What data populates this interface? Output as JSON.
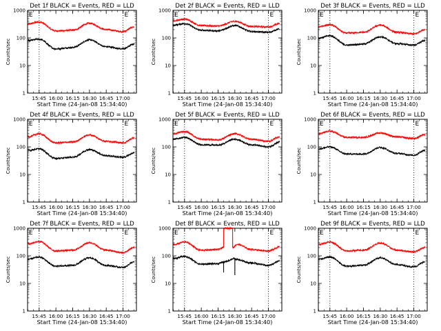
{
  "chart_data": [
    {
      "type": "line",
      "title": "Det 1f BLACK = Events, RED = LLD",
      "xlabel": "Start Time (24-Jan-08 15:34:40)",
      "ylabel": "Counts/sec",
      "y_scale": "log",
      "ylim": [
        1,
        1000
      ],
      "xlim": [
        "15:34:40",
        "17:12:00"
      ],
      "xticks": [
        "15:45",
        "16:00",
        "16:15",
        "16:30",
        "16:45",
        "17:00"
      ],
      "yticks": [
        "1",
        "10",
        "100",
        "1000"
      ],
      "markers": [
        {
          "label": "E",
          "time": "15:45"
        },
        {
          "label": "E",
          "time": "17:00"
        }
      ],
      "series": [
        {
          "color": "#ff0000",
          "x": [
            "15:35",
            "15:45",
            "16:00",
            "16:15",
            "16:30",
            "16:45",
            "17:00",
            "17:10"
          ],
          "values": [
            320,
            380,
            180,
            190,
            340,
            200,
            170,
            250
          ]
        },
        {
          "color": "#000000",
          "x": [
            "15:35",
            "15:45",
            "16:00",
            "16:15",
            "16:30",
            "16:45",
            "17:00",
            "17:10"
          ],
          "values": [
            80,
            90,
            40,
            45,
            85,
            48,
            40,
            60
          ]
        }
      ]
    },
    {
      "type": "line",
      "title": "Det 2f BLACK = Events, RED = LLD",
      "xlabel": "Start Time (24-Jan-08 15:34:40)",
      "ylabel": "Counts/sec",
      "y_scale": "log",
      "ylim": [
        1,
        1000
      ],
      "xlim": [
        "15:34:40",
        "17:12:00"
      ],
      "xticks": [
        "15:45",
        "16:00",
        "16:15",
        "16:30",
        "16:45",
        "17:00"
      ],
      "yticks": [
        "1",
        "10",
        "100",
        "1000"
      ],
      "markers": [
        {
          "label": "E",
          "time": "15:45"
        },
        {
          "label": "E",
          "time": "17:00"
        }
      ],
      "series": [
        {
          "color": "#ff0000",
          "x": [
            "15:35",
            "15:45",
            "16:00",
            "16:15",
            "16:30",
            "16:45",
            "17:00",
            "17:10"
          ],
          "values": [
            420,
            480,
            280,
            270,
            400,
            260,
            250,
            330
          ]
        },
        {
          "color": "#000000",
          "x": [
            "15:35",
            "15:45",
            "16:00",
            "16:15",
            "16:30",
            "16:45",
            "17:00",
            "17:10"
          ],
          "values": [
            290,
            330,
            190,
            180,
            280,
            170,
            160,
            210
          ]
        }
      ]
    },
    {
      "type": "line",
      "title": "Det 3f BLACK = Events, RED = LLD",
      "xlabel": "Start Time (24-Jan-08 15:34:40)",
      "ylabel": "Counts/sec",
      "y_scale": "log",
      "ylim": [
        1,
        1000
      ],
      "xlim": [
        "15:34:40",
        "17:12:00"
      ],
      "xticks": [
        "15:45",
        "16:00",
        "16:15",
        "16:30",
        "16:45",
        "17:00"
      ],
      "yticks": [
        "1",
        "10",
        "100",
        "1000"
      ],
      "markers": [
        {
          "label": "E",
          "time": "15:45"
        },
        {
          "label": "E",
          "time": "17:00"
        }
      ],
      "series": [
        {
          "color": "#ff0000",
          "x": [
            "15:35",
            "15:45",
            "16:00",
            "16:15",
            "16:30",
            "16:45",
            "17:00",
            "17:10"
          ],
          "values": [
            250,
            300,
            150,
            160,
            290,
            160,
            140,
            200
          ]
        },
        {
          "color": "#000000",
          "x": [
            "15:35",
            "15:45",
            "16:00",
            "16:15",
            "16:30",
            "16:45",
            "17:00",
            "17:10"
          ],
          "values": [
            100,
            120,
            55,
            60,
            110,
            62,
            55,
            80
          ]
        }
      ]
    },
    {
      "type": "line",
      "title": "Det 4f BLACK = Events, RED = LLD",
      "xlabel": "Start Time (24-Jan-08 15:34:40)",
      "ylabel": "Counts/sec",
      "y_scale": "log",
      "ylim": [
        1,
        1000
      ],
      "xlim": [
        "15:34:40",
        "17:12:00"
      ],
      "xticks": [
        "15:45",
        "16:00",
        "16:15",
        "16:30",
        "16:45",
        "17:00"
      ],
      "yticks": [
        "1",
        "10",
        "100",
        "1000"
      ],
      "markers": [
        {
          "label": "E",
          "time": "15:45"
        },
        {
          "label": "E",
          "time": "17:00"
        }
      ],
      "series": [
        {
          "color": "#ff0000",
          "x": [
            "15:35",
            "15:45",
            "16:00",
            "16:15",
            "16:30",
            "16:45",
            "17:00",
            "17:10"
          ],
          "values": [
            230,
            300,
            140,
            150,
            270,
            160,
            140,
            210
          ]
        },
        {
          "color": "#000000",
          "x": [
            "15:35",
            "15:45",
            "16:00",
            "16:15",
            "16:30",
            "16:45",
            "17:00",
            "17:10"
          ],
          "values": [
            75,
            85,
            38,
            42,
            80,
            48,
            42,
            60
          ]
        }
      ]
    },
    {
      "type": "line",
      "title": "Det 5f BLACK = Events, RED = LLD",
      "xlabel": "Start Time (24-Jan-08 15:34:40)",
      "ylabel": "Counts/sec",
      "y_scale": "log",
      "ylim": [
        1,
        1000
      ],
      "xlim": [
        "15:34:40",
        "17:12:00"
      ],
      "xticks": [
        "15:45",
        "16:00",
        "16:15",
        "16:30",
        "16:45",
        "17:00"
      ],
      "yticks": [
        "1",
        "10",
        "100",
        "1000"
      ],
      "markers": [
        {
          "label": "E",
          "time": "15:45"
        },
        {
          "label": "E",
          "time": "17:00"
        }
      ],
      "series": [
        {
          "color": "#ff0000",
          "x": [
            "15:35",
            "15:45",
            "16:00",
            "16:15",
            "16:30",
            "16:45",
            "17:00",
            "17:10"
          ],
          "values": [
            300,
            360,
            190,
            180,
            300,
            190,
            160,
            230
          ]
        },
        {
          "color": "#000000",
          "x": [
            "15:35",
            "15:45",
            "16:00",
            "16:15",
            "16:30",
            "16:45",
            "17:00",
            "17:10"
          ],
          "values": [
            190,
            220,
            120,
            115,
            190,
            120,
            100,
            150
          ]
        }
      ]
    },
    {
      "type": "line",
      "title": "Det 6f BLACK = Events, RED = LLD",
      "xlabel": "Start Time (24-Jan-08 15:34:40)",
      "ylabel": "Counts/sec",
      "y_scale": "log",
      "ylim": [
        1,
        1000
      ],
      "xlim": [
        "15:34:40",
        "17:12:00"
      ],
      "xticks": [
        "15:45",
        "16:00",
        "16:15",
        "16:30",
        "16:45",
        "17:00"
      ],
      "yticks": [
        "1",
        "10",
        "100",
        "1000"
      ],
      "markers": [
        {
          "label": "E",
          "time": "15:45"
        },
        {
          "label": "E",
          "time": "17:00"
        }
      ],
      "series": [
        {
          "color": "#ff0000",
          "x": [
            "15:35",
            "15:45",
            "16:00",
            "16:15",
            "16:30",
            "16:45",
            "17:00",
            "17:10"
          ],
          "values": [
            300,
            370,
            220,
            220,
            320,
            230,
            200,
            280
          ]
        },
        {
          "color": "#000000",
          "x": [
            "15:35",
            "15:45",
            "16:00",
            "16:15",
            "16:30",
            "16:45",
            "17:00",
            "17:10"
          ],
          "values": [
            85,
            100,
            55,
            55,
            95,
            58,
            50,
            75
          ]
        }
      ]
    },
    {
      "type": "line",
      "title": "Det 7f BLACK = Events, RED = LLD",
      "xlabel": "Start Time (24-Jan-08 15:34:40)",
      "ylabel": "Counts/sec",
      "y_scale": "log",
      "ylim": [
        1,
        1000
      ],
      "xlim": [
        "15:34:40",
        "17:12:00"
      ],
      "xticks": [
        "15:45",
        "16:00",
        "16:15",
        "16:30",
        "16:45",
        "17:00"
      ],
      "yticks": [
        "1",
        "10",
        "100",
        "1000"
      ],
      "markers": [
        {
          "label": "E",
          "time": "15:45"
        },
        {
          "label": "E",
          "time": "17:00"
        }
      ],
      "series": [
        {
          "color": "#ff0000",
          "x": [
            "15:35",
            "15:45",
            "16:00",
            "16:15",
            "16:30",
            "16:45",
            "17:00",
            "17:10"
          ],
          "values": [
            270,
            330,
            150,
            160,
            300,
            160,
            130,
            200
          ]
        },
        {
          "color": "#000000",
          "x": [
            "15:35",
            "15:45",
            "16:00",
            "16:15",
            "16:30",
            "16:45",
            "17:00",
            "17:10"
          ],
          "values": [
            75,
            90,
            42,
            45,
            85,
            45,
            38,
            60
          ]
        }
      ]
    },
    {
      "type": "line",
      "title": "Det 8f BLACK = Events, RED = LLD",
      "xlabel": "Start Time (24-Jan-08 15:34:40)",
      "ylabel": "Counts/sec",
      "y_scale": "log",
      "ylim": [
        1,
        1000
      ],
      "xlim": [
        "15:34:40",
        "17:12:00"
      ],
      "xticks": [
        "15:45",
        "16:00",
        "16:15",
        "16:30",
        "16:45",
        "17:00"
      ],
      "yticks": [
        "1",
        "10",
        "100",
        "1000"
      ],
      "markers": [
        {
          "label": "E",
          "time": "15:45"
        },
        {
          "label": "E",
          "time": "17:00"
        }
      ],
      "series": [
        {
          "color": "#ff0000",
          "x": [
            "15:35",
            "15:45",
            "16:00",
            "16:15",
            "16:20",
            "16:20",
            "16:28",
            "16:28",
            "16:32",
            "16:45",
            "17:00",
            "17:10"
          ],
          "values": [
            250,
            320,
            160,
            170,
            200,
            1000,
            1000,
            200,
            260,
            170,
            150,
            210
          ]
        },
        {
          "color": "#000000",
          "x": [
            "15:35",
            "15:45",
            "16:00",
            "16:15",
            "16:20",
            "16:20",
            "16:20",
            "16:30",
            "16:30",
            "16:30",
            "16:45",
            "17:00",
            "17:10"
          ],
          "values": [
            80,
            95,
            50,
            52,
            60,
            25,
            60,
            80,
            20,
            75,
            55,
            45,
            65
          ]
        }
      ]
    },
    {
      "type": "line",
      "title": "Det 9f BLACK = Events, RED = LLD",
      "xlabel": "Start Time (24-Jan-08 15:34:40)",
      "ylabel": "Counts/sec",
      "y_scale": "log",
      "ylim": [
        1,
        1000
      ],
      "xlim": [
        "15:34:40",
        "17:12:00"
      ],
      "xticks": [
        "15:45",
        "16:00",
        "16:15",
        "16:30",
        "16:45",
        "17:00"
      ],
      "yticks": [
        "1",
        "10",
        "100",
        "1000"
      ],
      "markers": [
        {
          "label": "E",
          "time": "15:45"
        },
        {
          "label": "E",
          "time": "17:00"
        }
      ],
      "series": [
        {
          "color": "#ff0000",
          "x": [
            "15:35",
            "15:45",
            "16:00",
            "16:15",
            "16:30",
            "16:45",
            "17:00",
            "17:10"
          ],
          "values": [
            260,
            320,
            150,
            160,
            290,
            160,
            140,
            200
          ]
        },
        {
          "color": "#000000",
          "x": [
            "15:35",
            "15:45",
            "16:00",
            "16:15",
            "16:30",
            "16:45",
            "17:00",
            "17:10"
          ],
          "values": [
            75,
            90,
            42,
            46,
            85,
            48,
            40,
            60
          ]
        }
      ]
    }
  ]
}
